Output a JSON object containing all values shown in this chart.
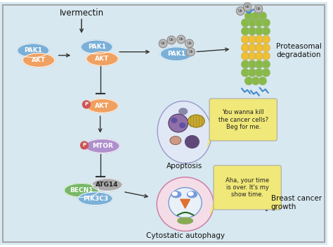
{
  "background_color": "#d8e8f0",
  "border_color": "#999999",
  "title": "Ivermectin",
  "proteasomal_label": "Proteasomal\ndegradation",
  "apoptosis_label": "Apoptosis",
  "cytostatic_label": "Cytostatic autophagy",
  "breast_cancer_label": "Breast cancer\ngrowth",
  "speech1": "You wanna kill\nthe cancer cells?\nBeg for me.",
  "speech2": "Aha, your time\nis over. It's my\nshow time.",
  "pak1_color": "#7ab0d8",
  "akt_color": "#f0a060",
  "mtor_color": "#b090cc",
  "becn1_color": "#78b868",
  "atg14_color": "#aaaaaa",
  "pik3c3_color": "#7ab0d8",
  "speech_color": "#f0e878",
  "p_color": "#cc5555",
  "ub_color": "#bbbbbb"
}
